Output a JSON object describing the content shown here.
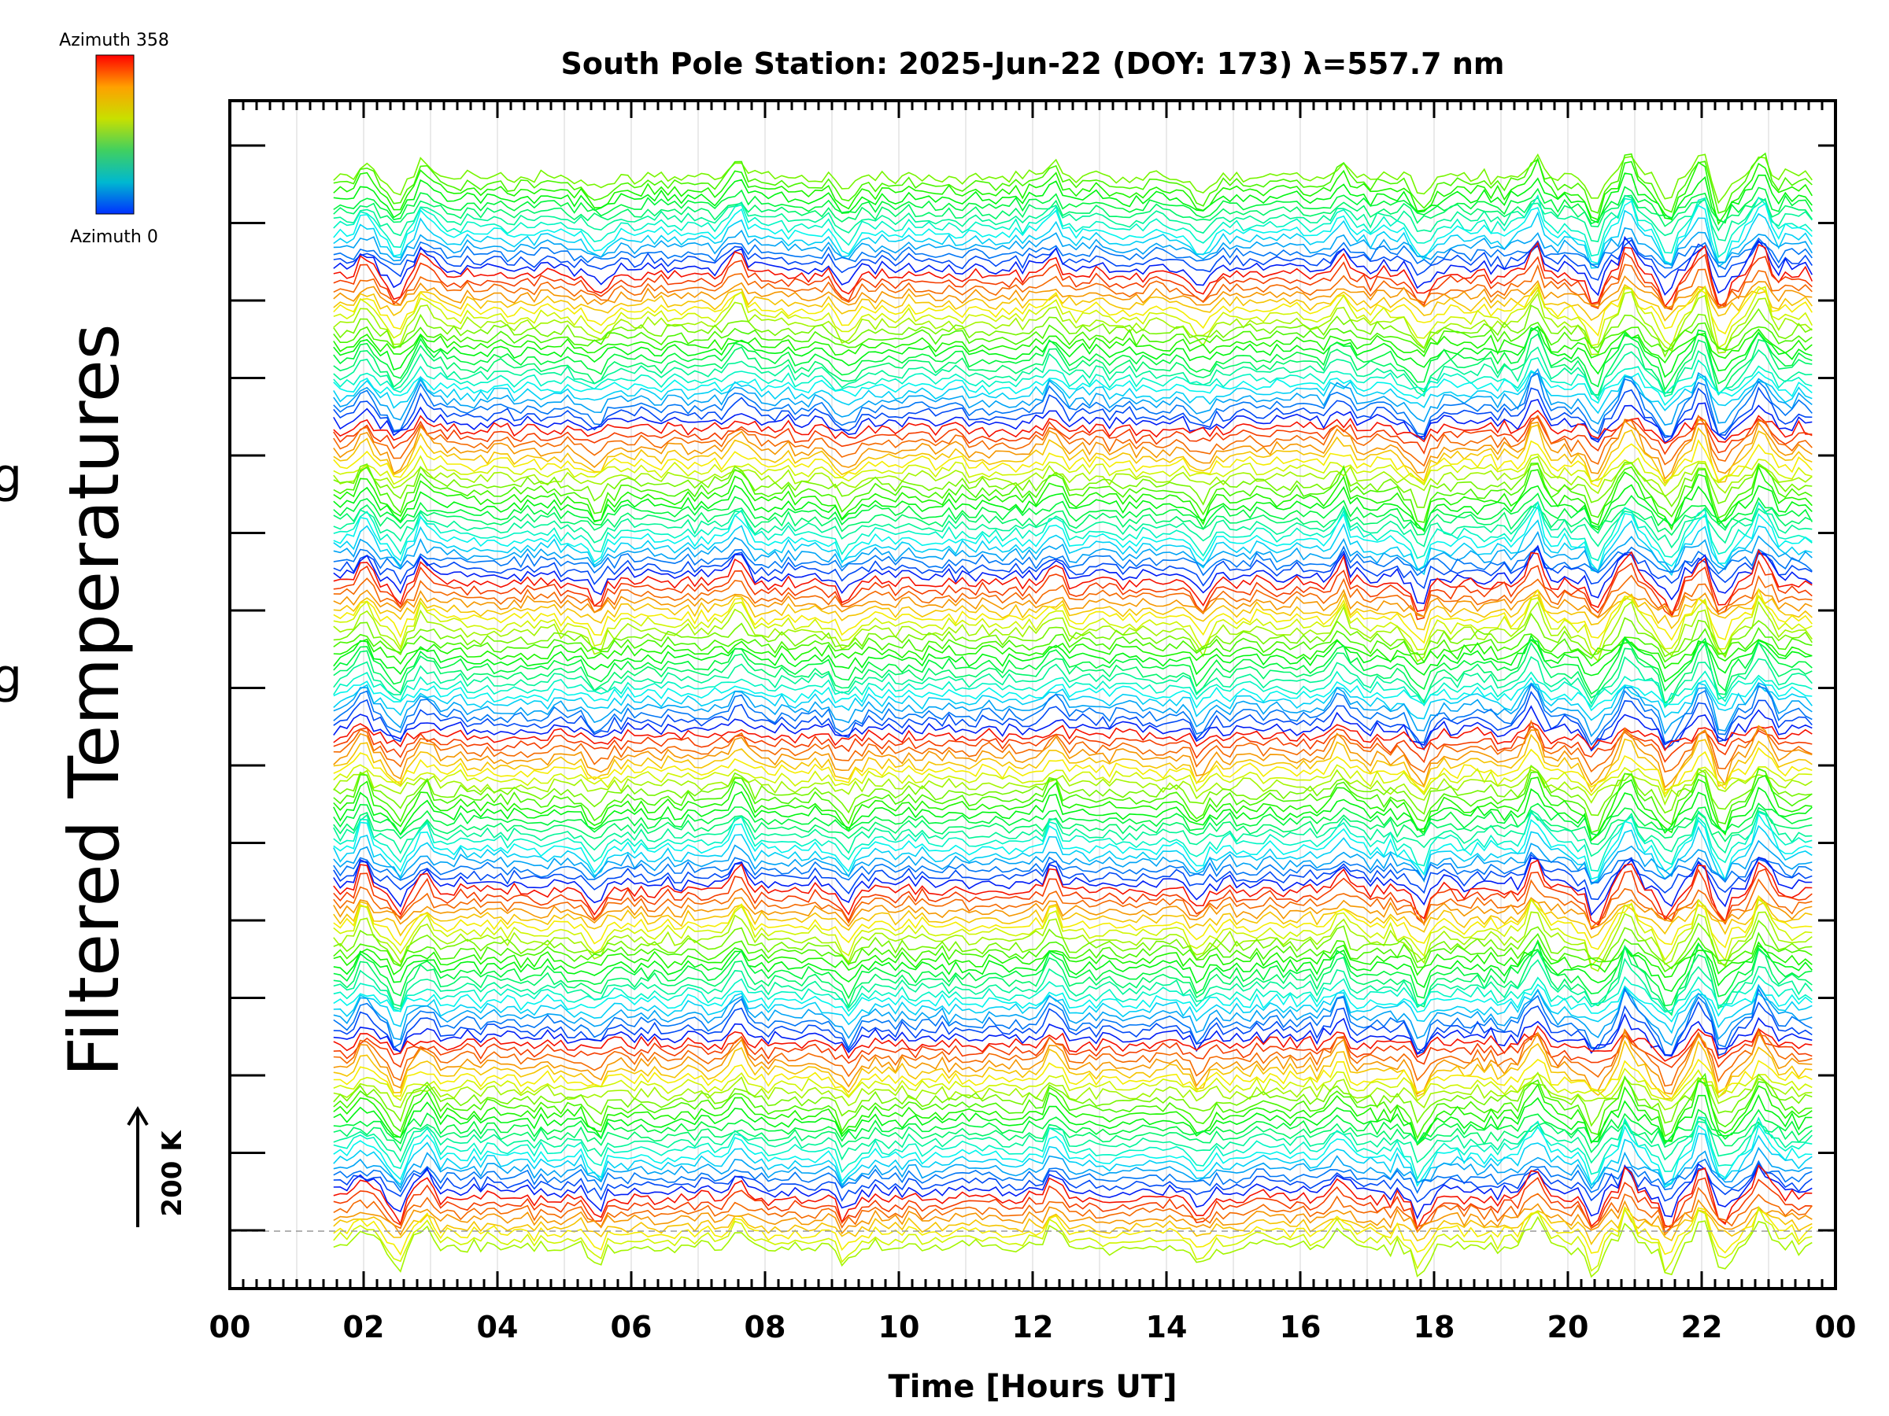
{
  "chart_data": {
    "type": "line",
    "title": "South Pole Station: 2025-Jun-22 (DOY: 173) λ=557.7 nm",
    "xlabel": "Time [Hours UT]",
    "ylabel": "Filtered Temperatures",
    "xlim": [
      0,
      24
    ],
    "x_tick_labels": [
      "00",
      "02",
      "04",
      "06",
      "08",
      "10",
      "12",
      "14",
      "16",
      "18",
      "20",
      "22",
      "00"
    ],
    "data_start_hour": 1.55,
    "data_end_hour": 23.7,
    "grid": "vertical hourly",
    "colorbar": {
      "top_label": "Azimuth 358",
      "bottom_label": "Azimuth 0",
      "colors": [
        "#ff0000",
        "#ffa000",
        "#c8e000",
        "#40d060",
        "#00b8d0",
        "#0030ff"
      ]
    },
    "scale_bar": {
      "label": "200 K",
      "value_k": 200
    },
    "stack_groups": 7,
    "lines_per_group": 22,
    "disturbance_hours": [
      2.0,
      2.5,
      2.9,
      5.5,
      7.6,
      9.2,
      12.3,
      14.5,
      16.6,
      17.8,
      19.5,
      20.4,
      20.9,
      21.5,
      22.0,
      22.3,
      22.9
    ],
    "line_colors": [
      "#0030ff",
      "#ff0000",
      "#ffa000",
      "#c8e000",
      "#40d060",
      "#00b8d0"
    ]
  }
}
